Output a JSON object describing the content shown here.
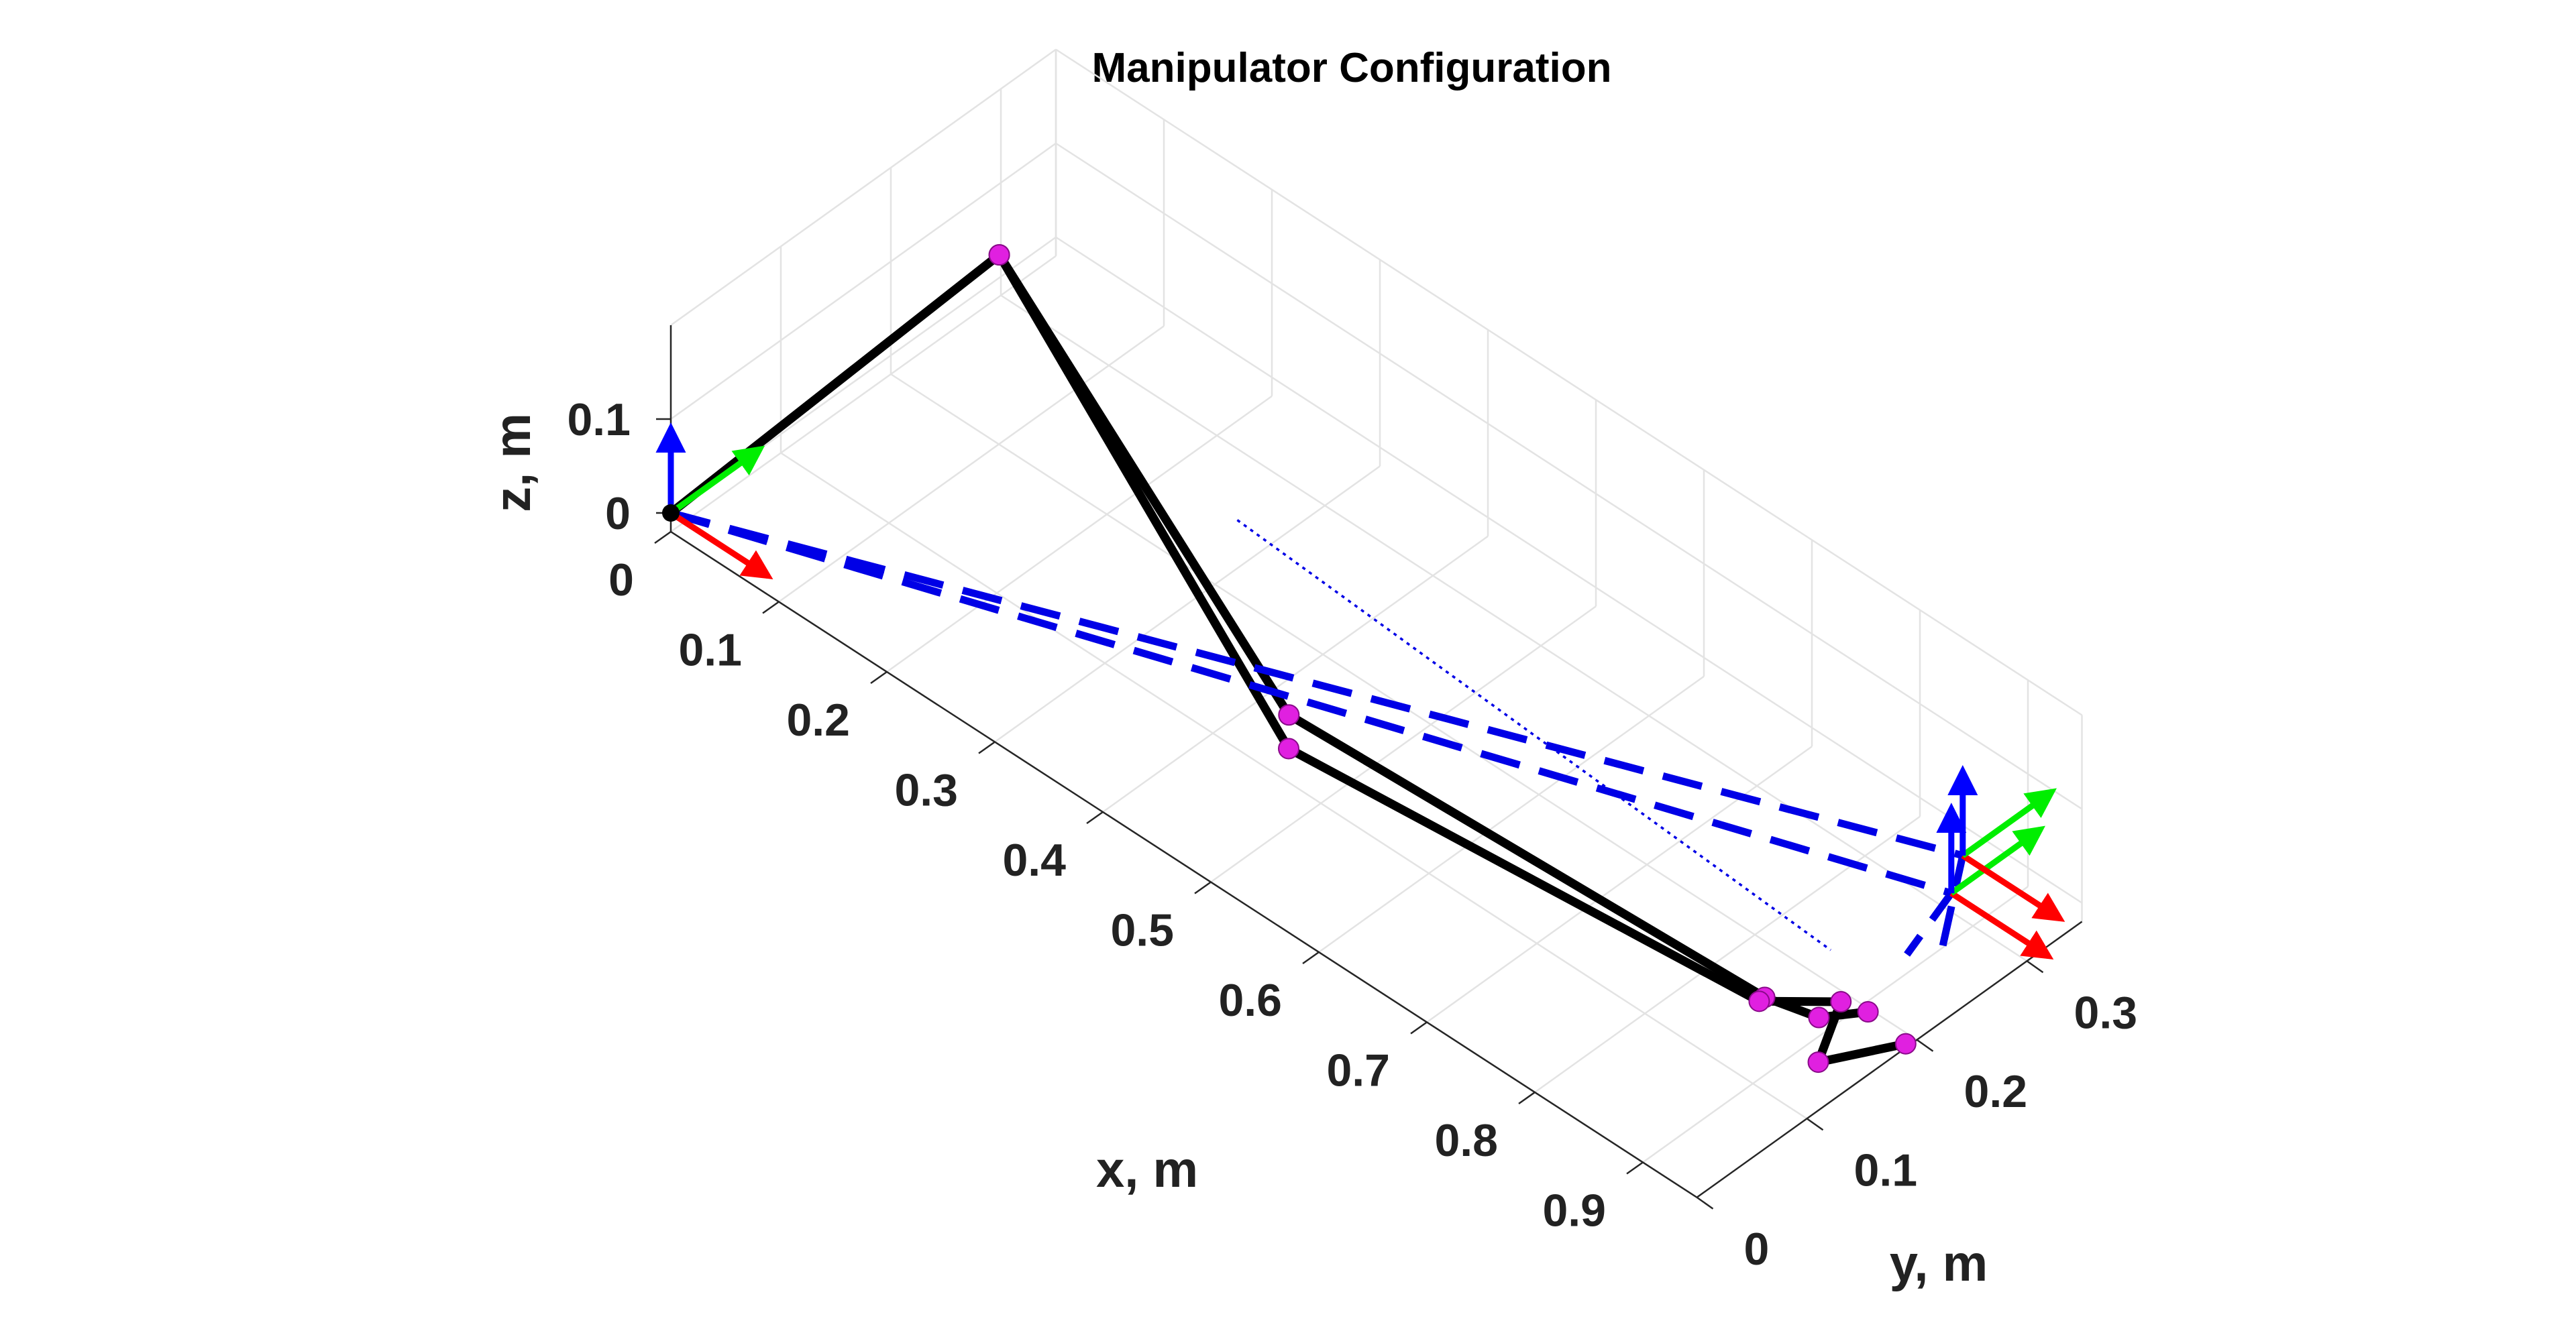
{
  "chart_data": {
    "type": "line",
    "title": "Manipulator Configuration",
    "xlabel": "x, m",
    "ylabel": "y, m",
    "zlabel": "z, m",
    "xticks": [
      "0",
      "0.1",
      "0.2",
      "0.3",
      "0.4",
      "0.5",
      "0.6",
      "0.7",
      "0.8",
      "0.9"
    ],
    "yticks": [
      "0",
      "0.1",
      "0.2",
      "0.3"
    ],
    "zticks": [
      "0",
      "0.1"
    ],
    "xlim": [
      0,
      0.95
    ],
    "ylim": [
      0,
      0.35
    ],
    "zlim": [
      -0.02,
      0.2
    ],
    "grid": true,
    "colors": {
      "links": "#000000",
      "joints": "#e020e0",
      "dashed": "#0000e6",
      "frame_x": "#ff0000",
      "frame_y": "#00ee00",
      "frame_z": "#0000ff"
    },
    "series": [
      {
        "style": "solid",
        "points": [
          [
            0,
            0,
            0
          ],
          [
            0.08,
            0.22,
            0.15
          ],
          [
            0.45,
            0.12,
            0.02
          ],
          [
            0.86,
            0.15,
            0.0
          ],
          [
            0.9,
            0.16,
            0.0
          ],
          [
            0.92,
            0.185,
            0.0
          ]
        ]
      },
      {
        "style": "solid",
        "points": [
          [
            0,
            0,
            0
          ],
          [
            0.08,
            0.22,
            0.15
          ],
          [
            0.46,
            0.11,
            0.0
          ],
          [
            0.86,
            0.145,
            0.0
          ],
          [
            0.9,
            0.18,
            0.0
          ],
          [
            0.93,
            0.13,
            0.0
          ],
          [
            0.96,
            0.18,
            0.0
          ]
        ]
      },
      {
        "style": "dashed",
        "points": [
          [
            0,
            0,
            0
          ],
          [
            0.88,
            0.3,
            0.0
          ],
          [
            0.9,
            0.24,
            0.0
          ]
        ]
      },
      {
        "style": "dashed",
        "points": [
          [
            0,
            0,
            0
          ],
          [
            0.86,
            0.33,
            0.0
          ],
          [
            0.92,
            0.25,
            0.0
          ]
        ]
      },
      {
        "style": "dotted",
        "points": [
          [
            0.28,
            0.24,
            0.0
          ],
          [
            0.86,
            0.21,
            0.0
          ]
        ]
      }
    ],
    "frames": [
      [
        0,
        0,
        0
      ],
      [
        0.88,
        0.3,
        0.0
      ],
      [
        0.86,
        0.33,
        0.0
      ]
    ]
  }
}
